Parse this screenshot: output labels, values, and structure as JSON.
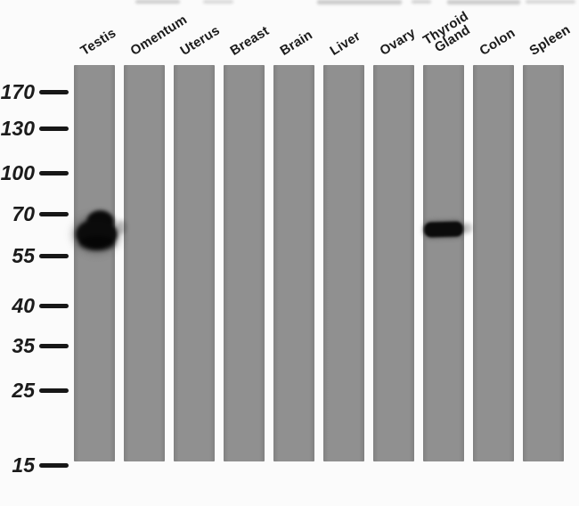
{
  "figure": {
    "kind": "western-blot",
    "description": "Western blot of ten human tissue lysates probed with one antibody; molecular weight ladder at left"
  },
  "lanes": [
    {
      "label": "Testis"
    },
    {
      "label": "Omentum"
    },
    {
      "label": "Uterus"
    },
    {
      "label": "Breast"
    },
    {
      "label": "Brain"
    },
    {
      "label": "Liver"
    },
    {
      "label": "Ovary"
    },
    {
      "label": "Thyroid Gland"
    },
    {
      "label": "Colon"
    },
    {
      "label": "Spleen"
    }
  ],
  "markers": [
    {
      "label": "170"
    },
    {
      "label": "130"
    },
    {
      "label": "100"
    },
    {
      "label": "70"
    },
    {
      "label": "55"
    },
    {
      "label": "40"
    },
    {
      "label": "35"
    },
    {
      "label": "25"
    },
    {
      "label": "15"
    }
  ],
  "bands": [
    {
      "lane": "Testis",
      "lane_index": 0,
      "position_kda_approx": 60,
      "intensity": "strong-wide"
    },
    {
      "lane": "Thyroid Gland",
      "lane_index": 7,
      "position_kda_approx": 60,
      "intensity": "strong"
    }
  ],
  "colors": {
    "lane_gray": "#8c8c8c",
    "band_black": "#0b0b0b",
    "background": "#fbfbfb",
    "text": "#1b1b1b"
  }
}
